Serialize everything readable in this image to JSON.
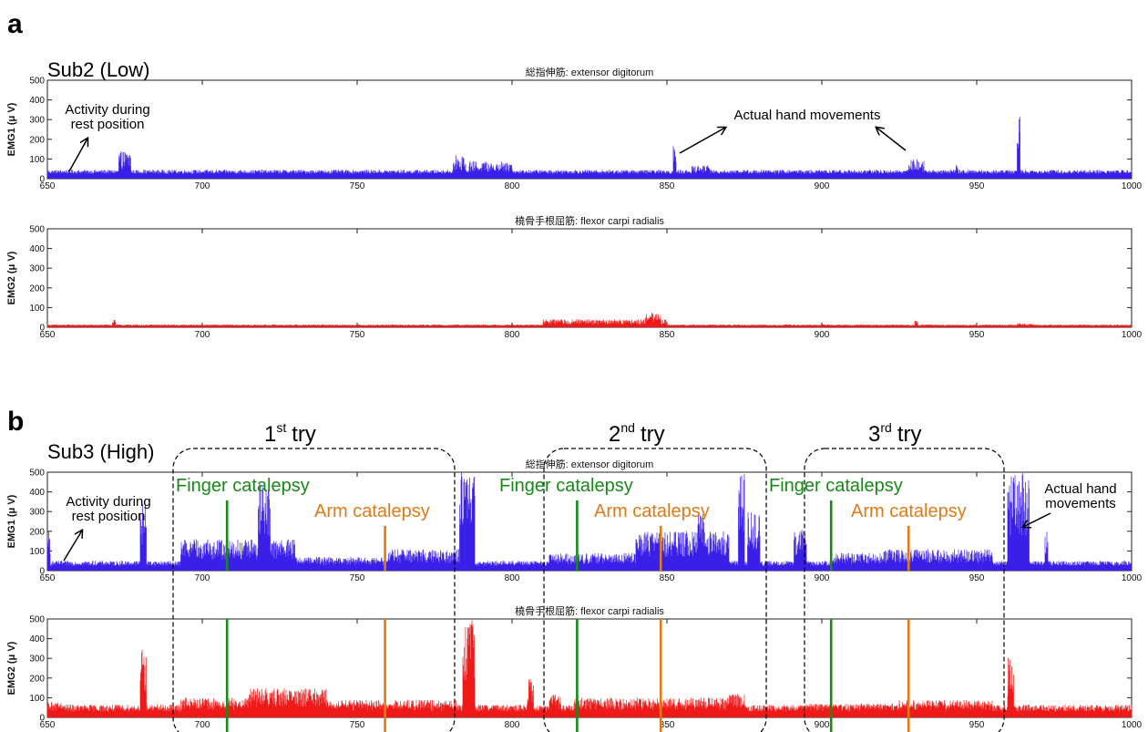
{
  "colors": {
    "emg1": "#3a1fe8",
    "emg2": "#ee1a1a",
    "finger": "#178a17",
    "arm": "#e07a16"
  },
  "panel_a": {
    "letter": "a",
    "subject": "Sub2 (Low)",
    "annotation_rest": [
      "Activity during",
      "rest position"
    ],
    "annotation_actual": "Actual hand movements"
  },
  "panel_b": {
    "letter": "b",
    "subject": "Sub3 (High)",
    "annotation_rest": [
      "Activity during",
      "rest position"
    ],
    "annotation_actual": [
      "Actual hand",
      "movements"
    ],
    "tries": [
      {
        "num": "1",
        "sup": "st",
        "word": "try",
        "finger_label": "Finger catalepsy",
        "arm_label": "Arm catalepsy"
      },
      {
        "num": "2",
        "sup": "nd",
        "word": "try",
        "finger_label": "Finger catalepsy",
        "arm_label": "Arm catalepsy"
      },
      {
        "num": "3",
        "sup": "rd",
        "word": "try",
        "finger_label": "Finger catalepsy",
        "arm_label": "Arm catalepsy"
      }
    ]
  },
  "chart_data": [
    {
      "id": "a1",
      "type": "line",
      "title": "総指伸筋: extensor digitorum",
      "ylabel": "EMG1 (μ V)",
      "xlim": [
        650,
        1000
      ],
      "ylim": [
        0,
        500
      ],
      "xticks": [
        650,
        700,
        750,
        800,
        850,
        900,
        950,
        1000
      ],
      "yticks": [
        0,
        100,
        200,
        300,
        400,
        500
      ],
      "series": [
        {
          "color": "#3a1fe8",
          "baseline": 25,
          "noise": 20,
          "bursts": [
            [
              673,
              677,
              140
            ],
            [
              781,
              785,
              120
            ],
            [
              786,
              800,
              90
            ],
            [
              852,
              853,
              170
            ],
            [
              858,
              864,
              70
            ],
            [
              928,
              933,
              100
            ],
            [
              943,
              944,
              70
            ],
            [
              963,
              964,
              345
            ]
          ]
        }
      ],
      "markers": []
    },
    {
      "id": "a2",
      "type": "line",
      "title": "橈骨手根屈筋: flexor carpi radialis",
      "ylabel": "EMG2 (μ V)",
      "xlim": [
        650,
        1000
      ],
      "ylim": [
        0,
        500
      ],
      "xticks": [
        650,
        700,
        750,
        800,
        850,
        900,
        950,
        1000
      ],
      "yticks": [
        0,
        100,
        200,
        300,
        400,
        500
      ],
      "series": [
        {
          "color": "#ee1a1a",
          "baseline": 8,
          "noise": 6,
          "bursts": [
            [
              671,
              672,
              45
            ],
            [
              810,
              850,
              40
            ],
            [
              843,
              848,
              75
            ],
            [
              930,
              931,
              40
            ],
            [
              963,
              968,
              20
            ]
          ]
        }
      ],
      "markers": []
    },
    {
      "id": "b1",
      "type": "line",
      "title": "総指伸筋: extensor digitorum",
      "ylabel": "EMG1 (μ V)",
      "xlim": [
        650,
        1000
      ],
      "ylim": [
        0,
        500
      ],
      "xticks": [
        650,
        700,
        750,
        800,
        850,
        900,
        950,
        1000
      ],
      "yticks": [
        0,
        100,
        200,
        300,
        400,
        500
      ],
      "series": [
        {
          "color": "#3a1fe8",
          "baseline": 25,
          "noise": 25,
          "bursts": [
            [
              650,
              651,
              210
            ],
            [
              680,
              682,
              350
            ],
            [
              693,
              730,
              160
            ],
            [
              718,
              722,
              450
            ],
            [
              730,
              760,
              70
            ],
            [
              760,
              783,
              110
            ],
            [
              783,
              788,
              500
            ],
            [
              795,
              805,
              40
            ],
            [
              812,
              840,
              90
            ],
            [
              840,
              870,
              200
            ],
            [
              860,
              862,
              300
            ],
            [
              873,
              875,
              500
            ],
            [
              876,
              880,
              300
            ],
            [
              891,
              895,
              210
            ],
            [
              903,
              920,
              90
            ],
            [
              920,
              955,
              110
            ],
            [
              960,
              967,
              500
            ],
            [
              972,
              973,
              200
            ]
          ]
        }
      ],
      "markers": [
        {
          "x": 708,
          "color": "#178a17"
        },
        {
          "x": 759,
          "color": "#e07a16"
        },
        {
          "x": 821,
          "color": "#178a17"
        },
        {
          "x": 848,
          "color": "#e07a16"
        },
        {
          "x": 903,
          "color": "#178a17"
        },
        {
          "x": 928,
          "color": "#e07a16"
        }
      ]
    },
    {
      "id": "b2",
      "type": "line",
      "title": "橈骨手根屈筋: flexor carpi radialis",
      "ylabel": "EMG2 (μ V)",
      "xlim": [
        650,
        1000
      ],
      "ylim": [
        0,
        500
      ],
      "xticks": [
        650,
        700,
        750,
        800,
        850,
        900,
        950,
        1000
      ],
      "yticks": [
        0,
        100,
        200,
        300,
        400,
        500
      ],
      "series": [
        {
          "color": "#ee1a1a",
          "baseline": 30,
          "noise": 35,
          "bursts": [
            [
              650,
              655,
              80
            ],
            [
              680,
              682,
              360
            ],
            [
              693,
              715,
              100
            ],
            [
              715,
              740,
              150
            ],
            [
              740,
              782,
              90
            ],
            [
              784,
              788,
              500
            ],
            [
              805,
              807,
              200
            ],
            [
              812,
              816,
              120
            ],
            [
              820,
              870,
              100
            ],
            [
              870,
              875,
              120
            ],
            [
              895,
              925,
              70
            ],
            [
              925,
              955,
              90
            ],
            [
              960,
              962,
              310
            ]
          ]
        }
      ],
      "markers": [
        {
          "x": 708,
          "color": "#178a17"
        },
        {
          "x": 759,
          "color": "#e07a16"
        },
        {
          "x": 821,
          "color": "#178a17"
        },
        {
          "x": 848,
          "color": "#e07a16"
        },
        {
          "x": 903,
          "color": "#178a17"
        },
        {
          "x": 928,
          "color": "#e07a16"
        }
      ]
    }
  ]
}
